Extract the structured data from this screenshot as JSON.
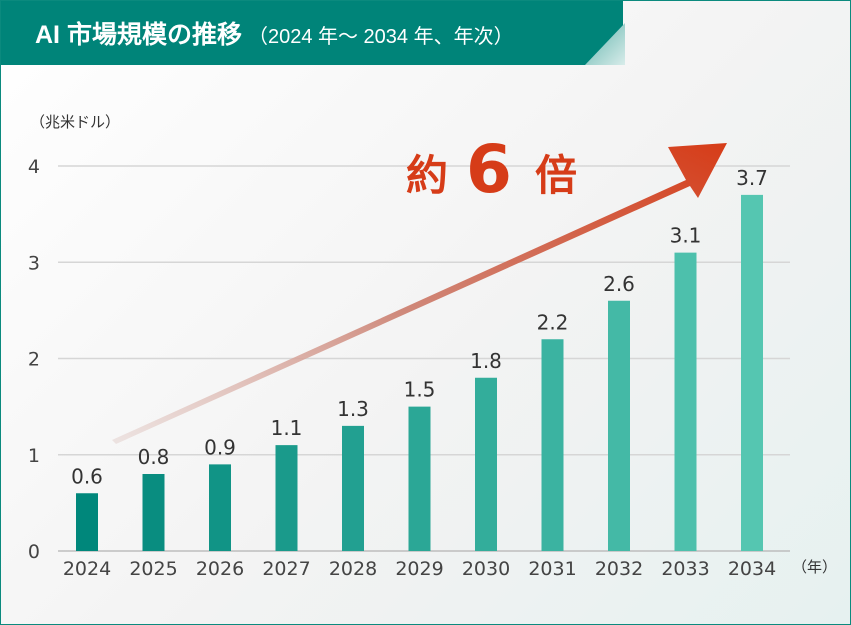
{
  "header": {
    "title": "AI 市場規模の推移",
    "subtitle": "（2024 年～ 2034 年、年次）"
  },
  "chart_data": {
    "type": "bar",
    "title": "AI 市場規模の推移（2024 年～ 2034 年、年次）",
    "ylabel": "（兆米ドル）",
    "xlabel": "（年）",
    "categories": [
      "2024",
      "2025",
      "2026",
      "2027",
      "2028",
      "2029",
      "2030",
      "2031",
      "2032",
      "2033",
      "2034"
    ],
    "values": [
      0.6,
      0.8,
      0.9,
      1.1,
      1.3,
      1.5,
      1.8,
      2.2,
      2.6,
      3.1,
      3.7
    ],
    "value_labels": [
      "0.6",
      "0.8",
      "0.9",
      "1.1",
      "1.3",
      "1.5",
      "1.8",
      "2.2",
      "2.6",
      "3.1",
      "3.7"
    ],
    "ylim": [
      0,
      4
    ],
    "yticks": [
      "0",
      "1",
      "2",
      "3",
      "4"
    ],
    "grid": true,
    "annotation": {
      "prefix": "約",
      "number": "6",
      "suffix": "倍"
    },
    "colors": {
      "bar_start": "#00877b",
      "bar_end": "#55c6b1",
      "arrow": "#d63c18",
      "arrow_tail": "#c9a8a3"
    }
  }
}
